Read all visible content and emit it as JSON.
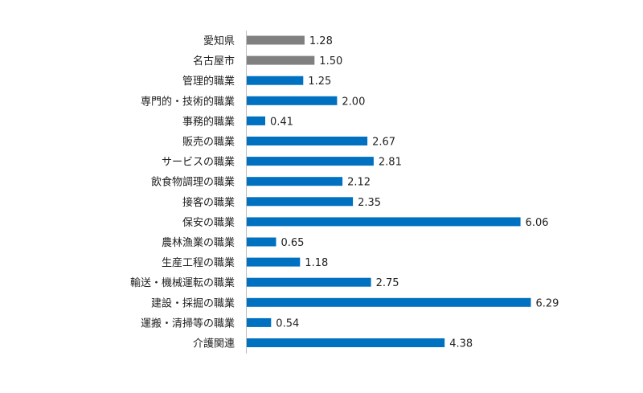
{
  "chart_data": {
    "type": "bar",
    "orientation": "horizontal",
    "title": "",
    "xlabel": "",
    "ylabel": "",
    "categories": [
      "愛知県",
      "名古屋市",
      "管理的職業",
      "専門的・技術的職業",
      "事務的職業",
      "販売の職業",
      "サービスの職業",
      "飲食物調理の職業",
      "接客の職業",
      "保安の職業",
      "農林漁業の職業",
      "生産工程の職業",
      "輸送・機械運転の職業",
      "建設・採掘の職業",
      "運搬・清掃等の職業",
      "介護関連"
    ],
    "values": [
      1.28,
      1.5,
      1.25,
      2.0,
      0.41,
      2.67,
      2.81,
      2.12,
      2.35,
      6.06,
      0.65,
      1.18,
      2.75,
      6.29,
      0.54,
      4.38
    ],
    "value_labels": [
      "1.28",
      "1.50",
      "1.25",
      "2.00",
      "0.41",
      "2.67",
      "2.81",
      "2.12",
      "2.35",
      "6.06",
      "0.65",
      "1.18",
      "2.75",
      "6.29",
      "0.54",
      "4.38"
    ],
    "bar_colors": [
      "#808080",
      "#808080",
      "#0070c0",
      "#0070c0",
      "#0070c0",
      "#0070c0",
      "#0070c0",
      "#0070c0",
      "#0070c0",
      "#0070c0",
      "#0070c0",
      "#0070c0",
      "#0070c0",
      "#0070c0",
      "#0070c0",
      "#0070c0"
    ],
    "xlim": [
      0,
      7
    ],
    "grid": false,
    "legend": "none"
  }
}
